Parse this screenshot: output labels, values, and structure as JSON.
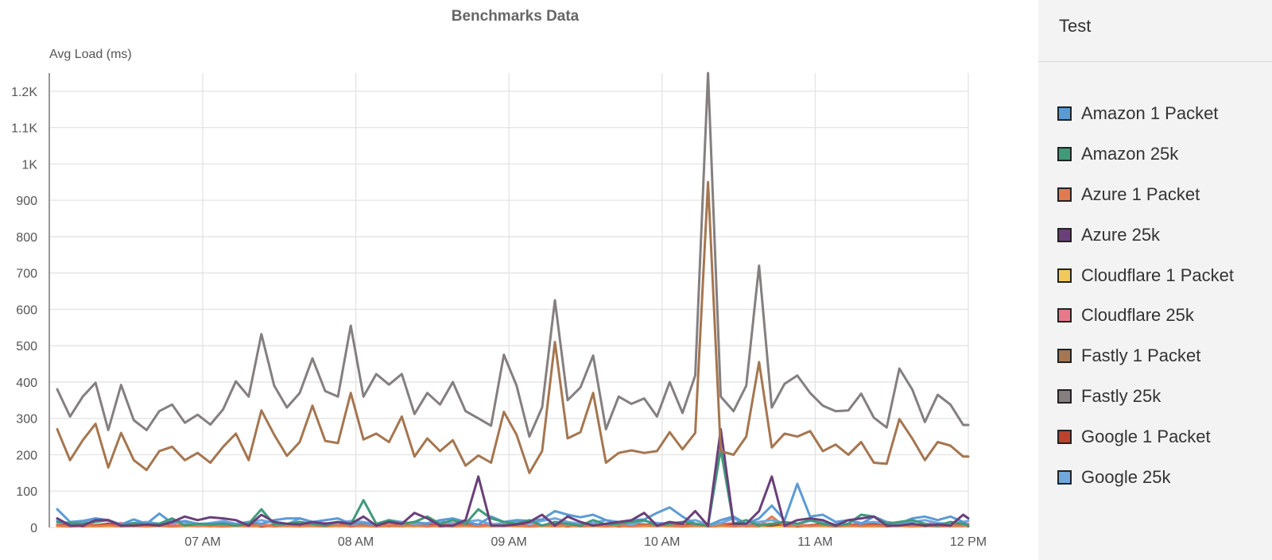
{
  "chart_data": {
    "type": "line",
    "title": "Benchmarks Data",
    "ylabel": "Avg Load (ms)",
    "xlabel": "",
    "ylim": [
      0,
      1250
    ],
    "yticks": [
      {
        "value": 0,
        "label": "0"
      },
      {
        "value": 100,
        "label": "100"
      },
      {
        "value": 200,
        "label": "200"
      },
      {
        "value": 300,
        "label": "300"
      },
      {
        "value": 400,
        "label": "400"
      },
      {
        "value": 500,
        "label": "500"
      },
      {
        "value": 600,
        "label": "600"
      },
      {
        "value": 700,
        "label": "700"
      },
      {
        "value": 800,
        "label": "800"
      },
      {
        "value": 900,
        "label": "900"
      },
      {
        "value": 1000,
        "label": "1K"
      },
      {
        "value": 1100,
        "label": "1.1K"
      },
      {
        "value": 1200,
        "label": "1.2K"
      }
    ],
    "xlim": [
      "06:03",
      "12:00"
    ],
    "xticks": [
      {
        "value": "07:00",
        "label": "07 AM"
      },
      {
        "value": "08:00",
        "label": "08 AM"
      },
      {
        "value": "09:00",
        "label": "09 AM"
      },
      {
        "value": "10:00",
        "label": "10 AM"
      },
      {
        "value": "11:00",
        "label": "11 AM"
      },
      {
        "value": "12:00",
        "label": "12 PM"
      }
    ],
    "grid": true,
    "legend_position": "right",
    "x": [
      "06:03",
      "06:08",
      "06:13",
      "06:18",
      "06:23",
      "06:28",
      "06:33",
      "06:38",
      "06:43",
      "06:48",
      "06:53",
      "06:58",
      "07:03",
      "07:08",
      "07:13",
      "07:18",
      "07:23",
      "07:28",
      "07:33",
      "07:38",
      "07:43",
      "07:48",
      "07:53",
      "07:58",
      "08:03",
      "08:08",
      "08:13",
      "08:18",
      "08:23",
      "08:28",
      "08:33",
      "08:38",
      "08:43",
      "08:48",
      "08:53",
      "08:58",
      "09:03",
      "09:08",
      "09:13",
      "09:18",
      "09:23",
      "09:28",
      "09:33",
      "09:38",
      "09:43",
      "09:48",
      "09:53",
      "09:58",
      "10:03",
      "10:08",
      "10:13",
      "10:18",
      "10:23",
      "10:28",
      "10:33",
      "10:38",
      "10:43",
      "10:48",
      "10:53",
      "10:58",
      "11:03",
      "11:08",
      "11:13",
      "11:18",
      "11:23",
      "11:28",
      "11:33",
      "11:38",
      "11:43",
      "11:48",
      "11:53",
      "11:58",
      "12:00"
    ],
    "series": [
      {
        "name": "Amazon 1 Packet",
        "color": "#5b9bd5",
        "values": [
          50,
          15,
          18,
          25,
          20,
          8,
          22,
          10,
          38,
          12,
          18,
          10,
          10,
          12,
          8,
          15,
          10,
          20,
          25,
          25,
          15,
          20,
          25,
          10,
          12,
          8,
          18,
          10,
          15,
          10,
          20,
          25,
          15,
          8,
          30,
          15,
          20,
          18,
          22,
          45,
          35,
          28,
          35,
          20,
          10,
          20,
          22,
          40,
          55,
          30,
          10,
          5,
          20,
          30,
          10,
          25,
          60,
          20,
          120,
          30,
          35,
          15,
          20,
          10,
          30,
          15,
          10,
          25,
          30,
          20,
          30,
          15,
          5
        ]
      },
      {
        "name": "Amazon 25k",
        "color": "#3f9b7a",
        "values": [
          15,
          12,
          10,
          15,
          20,
          5,
          12,
          8,
          10,
          25,
          5,
          10,
          8,
          10,
          5,
          10,
          50,
          8,
          10,
          15,
          10,
          5,
          15,
          8,
          75,
          10,
          20,
          10,
          15,
          30,
          10,
          20,
          10,
          50,
          25,
          15,
          10,
          20,
          5,
          15,
          10,
          5,
          20,
          8,
          10,
          15,
          20,
          5,
          10,
          15,
          10,
          5,
          215,
          10,
          20,
          5,
          10,
          15,
          10,
          20,
          10,
          5,
          10,
          35,
          30,
          10,
          15,
          20,
          10,
          5,
          15,
          10,
          5
        ]
      },
      {
        "name": "Azure 1 Packet",
        "color": "#e07b4f",
        "values": [
          5,
          3,
          5,
          4,
          6,
          3,
          5,
          4,
          5,
          3,
          6,
          4,
          5,
          3,
          5,
          4,
          6,
          3,
          5,
          4,
          5,
          3,
          6,
          4,
          5,
          3,
          5,
          4,
          6,
          3,
          5,
          4,
          5,
          3,
          6,
          4,
          5,
          3,
          5,
          4,
          6,
          3,
          5,
          4,
          5,
          3,
          6,
          4,
          5,
          3,
          5,
          4,
          6,
          3,
          5,
          4,
          30,
          3,
          5,
          4,
          6,
          3,
          5,
          4,
          5,
          3,
          6,
          4,
          5,
          3,
          5,
          4,
          6
        ]
      },
      {
        "name": "Azure 25k",
        "color": "#6a3f7a",
        "values": [
          25,
          5,
          5,
          20,
          20,
          5,
          5,
          8,
          5,
          15,
          30,
          20,
          28,
          25,
          20,
          5,
          35,
          15,
          10,
          8,
          15,
          10,
          15,
          10,
          30,
          5,
          15,
          10,
          40,
          25,
          5,
          5,
          20,
          140,
          5,
          5,
          8,
          15,
          35,
          5,
          30,
          15,
          5,
          10,
          15,
          20,
          40,
          5,
          15,
          10,
          45,
          5,
          270,
          10,
          10,
          45,
          140,
          5,
          20,
          25,
          20,
          5,
          20,
          25,
          30,
          5,
          5,
          10,
          5,
          8,
          5,
          35,
          25
        ]
      },
      {
        "name": "Cloudflare 1 Packet",
        "color": "#f2c75c",
        "values": [
          3,
          2,
          4,
          3,
          2,
          5,
          3,
          2,
          4,
          3,
          2,
          5,
          3,
          2,
          4,
          3,
          2,
          5,
          3,
          2,
          4,
          3,
          2,
          5,
          3,
          2,
          4,
          3,
          2,
          5,
          3,
          2,
          4,
          3,
          2,
          5,
          3,
          2,
          4,
          3,
          2,
          5,
          3,
          2,
          4,
          3,
          2,
          5,
          3,
          2,
          4,
          3,
          2,
          5,
          3,
          2,
          4,
          3,
          2,
          5,
          3,
          2,
          4,
          3,
          2,
          5,
          3,
          2,
          4,
          3,
          2,
          5,
          3
        ]
      },
      {
        "name": "Cloudflare 25k",
        "color": "#e77a8a",
        "values": [
          8,
          5,
          10,
          6,
          8,
          12,
          5,
          8,
          10,
          6,
          8,
          5,
          10,
          8,
          6,
          12,
          8,
          5,
          10,
          6,
          8,
          12,
          5,
          8,
          10,
          6,
          8,
          5,
          10,
          8,
          6,
          12,
          8,
          5,
          10,
          6,
          8,
          12,
          5,
          8,
          10,
          6,
          8,
          5,
          10,
          8,
          6,
          12,
          8,
          5,
          10,
          6,
          8,
          12,
          5,
          8,
          10,
          6,
          8,
          5,
          10,
          8,
          6,
          12,
          8,
          5,
          10,
          6,
          8,
          12,
          5,
          8,
          10
        ]
      },
      {
        "name": "Fastly 1 Packet",
        "color": "#a57650",
        "values": [
          270,
          185,
          240,
          285,
          165,
          260,
          185,
          158,
          210,
          222,
          185,
          205,
          178,
          222,
          258,
          185,
          322,
          255,
          197,
          235,
          335,
          238,
          232,
          370,
          242,
          258,
          235,
          305,
          195,
          245,
          210,
          240,
          170,
          198,
          178,
          318,
          255,
          150,
          210,
          510,
          245,
          262,
          370,
          178,
          205,
          212,
          205,
          210,
          262,
          215,
          260,
          950,
          210,
          200,
          250,
          455,
          220,
          258,
          250,
          265,
          210,
          228,
          200,
          235,
          178,
          175,
          298,
          245,
          185,
          235,
          225,
          195,
          195
        ]
      },
      {
        "name": "Fastly 25k",
        "color": "#857f7f",
        "values": [
          380,
          305,
          360,
          398,
          268,
          392,
          295,
          268,
          320,
          338,
          288,
          310,
          283,
          325,
          402,
          360,
          532,
          390,
          330,
          370,
          465,
          375,
          360,
          555,
          360,
          422,
          393,
          422,
          312,
          370,
          338,
          400,
          320,
          300,
          280,
          475,
          390,
          250,
          330,
          625,
          350,
          385,
          473,
          270,
          360,
          340,
          355,
          305,
          400,
          315,
          418,
          1250,
          360,
          320,
          390,
          720,
          330,
          395,
          418,
          370,
          335,
          320,
          322,
          368,
          302,
          275,
          437,
          380,
          290,
          365,
          338,
          282,
          282
        ]
      },
      {
        "name": "Google 1 Packet",
        "color": "#b9432d",
        "values": [
          5,
          8,
          3,
          6,
          10,
          4,
          7,
          5,
          9,
          3,
          6,
          8,
          4,
          7,
          5,
          10,
          3,
          6,
          8,
          4,
          7,
          5,
          9,
          3,
          6,
          8,
          4,
          7,
          5,
          10,
          3,
          6,
          8,
          4,
          7,
          5,
          9,
          3,
          6,
          8,
          4,
          7,
          5,
          10,
          3,
          6,
          8,
          4,
          7,
          5,
          9,
          3,
          6,
          8,
          4,
          7,
          5,
          10,
          3,
          6,
          8,
          4,
          7,
          5,
          9,
          3,
          6,
          8,
          4,
          7,
          5,
          10,
          3
        ]
      },
      {
        "name": "Google 25k",
        "color": "#6fa8dc",
        "values": [
          20,
          10,
          15,
          25,
          18,
          8,
          12,
          15,
          10,
          20,
          15,
          8,
          12,
          18,
          10,
          15,
          20,
          12,
          8,
          25,
          15,
          10,
          12,
          18,
          15,
          8,
          20,
          15,
          10,
          12,
          18,
          10,
          15,
          20,
          8,
          12,
          15,
          10,
          18,
          25,
          15,
          10,
          12,
          20,
          15,
          8,
          18,
          12,
          10,
          15,
          20,
          8,
          12,
          25,
          10,
          15,
          20,
          12,
          10,
          18,
          15,
          8,
          20,
          12,
          15,
          10,
          8,
          15,
          20,
          12,
          10,
          15,
          18
        ]
      }
    ]
  },
  "legend": {
    "header": "Test",
    "items": [
      {
        "label": "Amazon 1 Packet",
        "color": "#5b9bd5"
      },
      {
        "label": "Amazon 25k",
        "color": "#3f9b7a"
      },
      {
        "label": "Azure 1 Packet",
        "color": "#e07b4f"
      },
      {
        "label": "Azure 25k",
        "color": "#6a3f7a"
      },
      {
        "label": "Cloudflare 1 Packet",
        "color": "#f2c75c"
      },
      {
        "label": "Cloudflare 25k",
        "color": "#e77a8a"
      },
      {
        "label": "Fastly 1 Packet",
        "color": "#a57650"
      },
      {
        "label": "Fastly 25k",
        "color": "#857f7f"
      },
      {
        "label": "Google 1 Packet",
        "color": "#b9432d"
      },
      {
        "label": "Google 25k",
        "color": "#6fa8dc"
      }
    ]
  }
}
